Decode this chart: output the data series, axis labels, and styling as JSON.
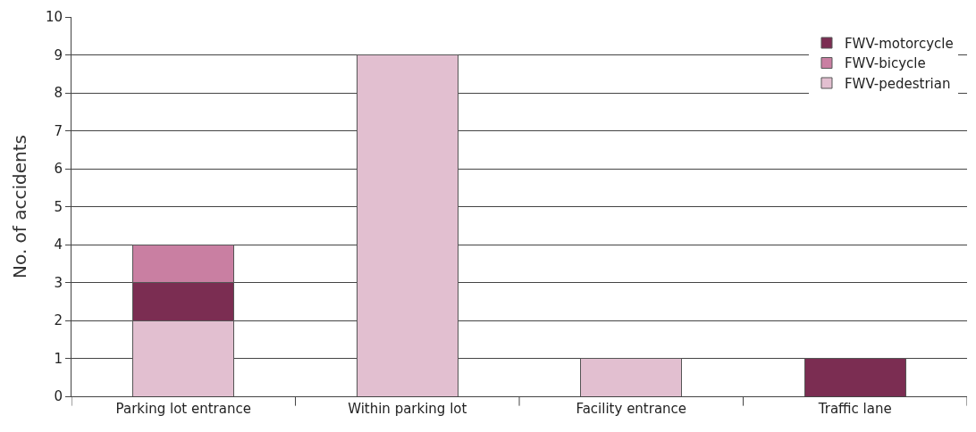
{
  "chart_data": {
    "type": "bar",
    "stacked": true,
    "ylabel": "No. of accidents",
    "categories": [
      "Parking lot entrance",
      "Within parking lot",
      "Facility entrance",
      "Traffic lane"
    ],
    "series": [
      {
        "name": "FWV-pedestrian",
        "color": "#e2bfd0",
        "values": [
          2,
          9,
          1,
          0
        ]
      },
      {
        "name": "FWV-motorcycle",
        "color": "#7b2d52",
        "values": [
          1,
          0,
          0,
          1
        ]
      },
      {
        "name": "FWV-bicycle",
        "color": "#c97fa2",
        "values": [
          1,
          0,
          0,
          0
        ]
      }
    ],
    "ylim": [
      0,
      10
    ],
    "yticks": [
      0,
      1,
      2,
      3,
      4,
      5,
      6,
      7,
      8,
      9,
      10
    ],
    "grid": "y",
    "legend": "top right"
  }
}
